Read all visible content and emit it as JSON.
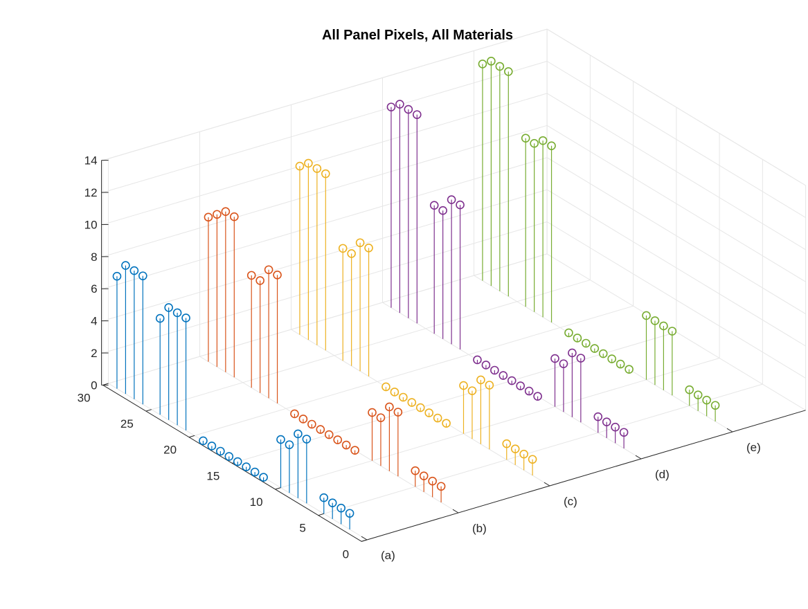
{
  "chart_data": {
    "type": "stem3",
    "title": "All Panel Pixels, All Materials",
    "xlabel": "",
    "ylabel": "",
    "zlabel": "",
    "x_categories": [
      "(a)",
      "(b)",
      "(c)",
      "(d)",
      "(e)"
    ],
    "y_ticks": [
      "0",
      "5",
      "10",
      "15",
      "20",
      "25",
      "30"
    ],
    "z_ticks": [
      "0",
      "2",
      "4",
      "6",
      "8",
      "10",
      "12",
      "14"
    ],
    "ylim": [
      0,
      30
    ],
    "zlim": [
      0,
      14
    ],
    "grid": true,
    "series": [
      {
        "category": "(a)",
        "color": "#0072BD",
        "points": [
          {
            "y": 2,
            "z": 1
          },
          {
            "y": 3,
            "z": 1
          },
          {
            "y": 4,
            "z": 1
          },
          {
            "y": 5,
            "z": 1
          },
          {
            "y": 7,
            "z": 4
          },
          {
            "y": 8,
            "z": 4
          },
          {
            "y": 9,
            "z": 3
          },
          {
            "y": 10,
            "z": 3
          },
          {
            "y": 12,
            "z": 0
          },
          {
            "y": 13,
            "z": 0
          },
          {
            "y": 14,
            "z": 0
          },
          {
            "y": 15,
            "z": 0
          },
          {
            "y": 16,
            "z": 0
          },
          {
            "y": 17,
            "z": 0
          },
          {
            "y": 18,
            "z": 0
          },
          {
            "y": 19,
            "z": 0
          },
          {
            "y": 21,
            "z": 7
          },
          {
            "y": 22,
            "z": 7
          },
          {
            "y": 23,
            "z": 7
          },
          {
            "y": 24,
            "z": 6
          },
          {
            "y": 26,
            "z": 8
          },
          {
            "y": 27,
            "z": 8
          },
          {
            "y": 28,
            "z": 8
          },
          {
            "y": 29,
            "z": 7
          }
        ]
      },
      {
        "category": "(b)",
        "color": "#D95319",
        "points": [
          {
            "y": 2,
            "z": 1
          },
          {
            "y": 3,
            "z": 1
          },
          {
            "y": 4,
            "z": 1
          },
          {
            "y": 5,
            "z": 1
          },
          {
            "y": 7,
            "z": 4
          },
          {
            "y": 8,
            "z": 4
          },
          {
            "y": 9,
            "z": 3
          },
          {
            "y": 10,
            "z": 3
          },
          {
            "y": 12,
            "z": 0
          },
          {
            "y": 13,
            "z": 0
          },
          {
            "y": 14,
            "z": 0
          },
          {
            "y": 15,
            "z": 0
          },
          {
            "y": 16,
            "z": 0
          },
          {
            "y": 17,
            "z": 0
          },
          {
            "y": 18,
            "z": 0
          },
          {
            "y": 19,
            "z": 0
          },
          {
            "y": 21,
            "z": 8
          },
          {
            "y": 22,
            "z": 8
          },
          {
            "y": 23,
            "z": 7
          },
          {
            "y": 24,
            "z": 7
          },
          {
            "y": 26,
            "z": 10
          },
          {
            "y": 27,
            "z": 10
          },
          {
            "y": 28,
            "z": 9.5
          },
          {
            "y": 29,
            "z": 9
          }
        ]
      },
      {
        "category": "(c)",
        "color": "#EDB120",
        "points": [
          {
            "y": 2,
            "z": 1
          },
          {
            "y": 3,
            "z": 1
          },
          {
            "y": 4,
            "z": 1
          },
          {
            "y": 5,
            "z": 1
          },
          {
            "y": 7,
            "z": 4
          },
          {
            "y": 8,
            "z": 4
          },
          {
            "y": 9,
            "z": 3
          },
          {
            "y": 10,
            "z": 3
          },
          {
            "y": 12,
            "z": 0
          },
          {
            "y": 13,
            "z": 0
          },
          {
            "y": 14,
            "z": 0
          },
          {
            "y": 15,
            "z": 0
          },
          {
            "y": 16,
            "z": 0
          },
          {
            "y": 17,
            "z": 0
          },
          {
            "y": 18,
            "z": 0
          },
          {
            "y": 19,
            "z": 0
          },
          {
            "y": 21,
            "z": 8
          },
          {
            "y": 22,
            "z": 8
          },
          {
            "y": 23,
            "z": 7
          },
          {
            "y": 24,
            "z": 7
          },
          {
            "y": 26,
            "z": 11
          },
          {
            "y": 27,
            "z": 11
          },
          {
            "y": 28,
            "z": 11
          },
          {
            "y": 29,
            "z": 10.5
          }
        ]
      },
      {
        "category": "(d)",
        "color": "#7E2F8E",
        "points": [
          {
            "y": 2,
            "z": 1
          },
          {
            "y": 3,
            "z": 1
          },
          {
            "y": 4,
            "z": 1
          },
          {
            "y": 5,
            "z": 1
          },
          {
            "y": 7,
            "z": 4
          },
          {
            "y": 8,
            "z": 4
          },
          {
            "y": 9,
            "z": 3
          },
          {
            "y": 10,
            "z": 3
          },
          {
            "y": 12,
            "z": 0
          },
          {
            "y": 13,
            "z": 0
          },
          {
            "y": 14,
            "z": 0
          },
          {
            "y": 15,
            "z": 0
          },
          {
            "y": 16,
            "z": 0
          },
          {
            "y": 17,
            "z": 0
          },
          {
            "y": 18,
            "z": 0
          },
          {
            "y": 19,
            "z": 0
          },
          {
            "y": 21,
            "z": 9
          },
          {
            "y": 22,
            "z": 9
          },
          {
            "y": 23,
            "z": 8
          },
          {
            "y": 24,
            "z": 8
          },
          {
            "y": 26,
            "z": 13
          },
          {
            "y": 27,
            "z": 13
          },
          {
            "y": 28,
            "z": 13
          },
          {
            "y": 29,
            "z": 12.5
          }
        ]
      },
      {
        "category": "(e)",
        "color": "#77AC30",
        "points": [
          {
            "y": 2,
            "z": 1
          },
          {
            "y": 3,
            "z": 1
          },
          {
            "y": 4,
            "z": 1
          },
          {
            "y": 5,
            "z": 1
          },
          {
            "y": 7,
            "z": 4
          },
          {
            "y": 8,
            "z": 4
          },
          {
            "y": 9,
            "z": 4
          },
          {
            "y": 10,
            "z": 4
          },
          {
            "y": 12,
            "z": 0
          },
          {
            "y": 13,
            "z": 0
          },
          {
            "y": 14,
            "z": 0
          },
          {
            "y": 15,
            "z": 0
          },
          {
            "y": 16,
            "z": 0
          },
          {
            "y": 17,
            "z": 0
          },
          {
            "y": 18,
            "z": 0
          },
          {
            "y": 19,
            "z": 0
          },
          {
            "y": 21,
            "z": 11
          },
          {
            "y": 22,
            "z": 11
          },
          {
            "y": 23,
            "z": 10.5
          },
          {
            "y": 24,
            "z": 10.5
          },
          {
            "y": 26,
            "z": 14
          },
          {
            "y": 27,
            "z": 14
          },
          {
            "y": 28,
            "z": 14
          },
          {
            "y": 29,
            "z": 13.5
          }
        ]
      }
    ]
  }
}
